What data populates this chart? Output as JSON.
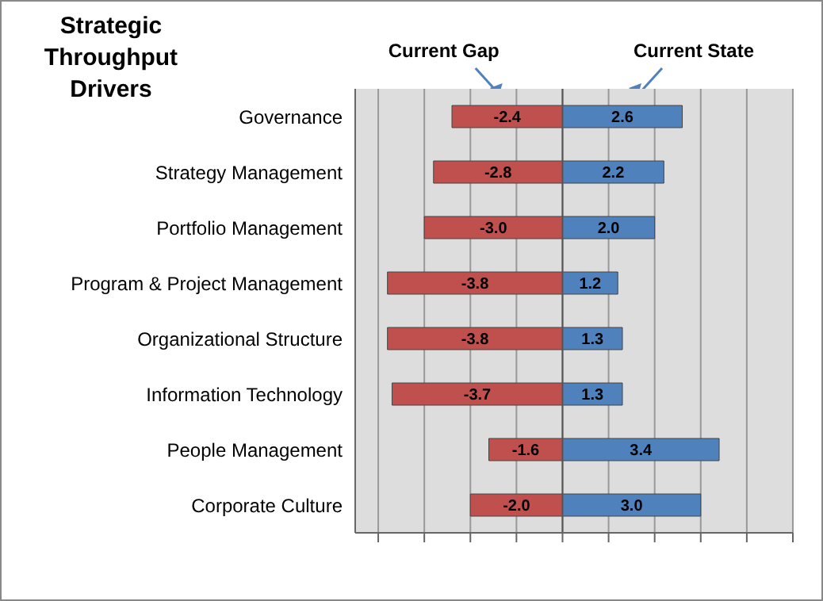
{
  "chart_data": {
    "type": "bar",
    "orientation": "horizontal",
    "stacked": true,
    "title": "Strategic Throughput Drivers",
    "categories": [
      "Governance",
      "Strategy Management",
      "Portfolio Management",
      "Program & Project Management",
      "Organizational Structure",
      "Information Technology",
      "People Management",
      "Corporate Culture"
    ],
    "series": [
      {
        "name": "Current Gap",
        "color": "#c0504d",
        "values": [
          -2.4,
          -2.8,
          -3.0,
          -3.8,
          -3.8,
          -3.7,
          -1.6,
          -2.0
        ],
        "value_labels": [
          "-2.4",
          "-2.8",
          "-3.0",
          "-3.8",
          "-3.8",
          "-3.7",
          "-1.6",
          "-2.0"
        ]
      },
      {
        "name": "Current State",
        "color": "#4f81bd",
        "values": [
          2.6,
          2.2,
          2.0,
          1.2,
          1.3,
          1.3,
          3.4,
          3.0
        ],
        "value_labels": [
          "2.6",
          "2.2",
          "2.0",
          "1.2",
          "1.3",
          "1.3",
          "3.4",
          "3.0"
        ]
      }
    ],
    "xlim": [
      -4.5,
      5
    ],
    "xticks": [
      {
        "value": -4,
        "label": null
      },
      {
        "value": -3,
        "label": null
      },
      {
        "value": -2,
        "label": null
      },
      {
        "value": -1,
        "label": null
      },
      {
        "value": 0,
        "label": null
      },
      {
        "value": 1,
        "label": null
      },
      {
        "value": 2,
        "label": null
      },
      {
        "value": 3,
        "label": null
      },
      {
        "value": 4,
        "label": null
      },
      {
        "value": 5,
        "label": null
      }
    ],
    "grid": "x"
  }
}
